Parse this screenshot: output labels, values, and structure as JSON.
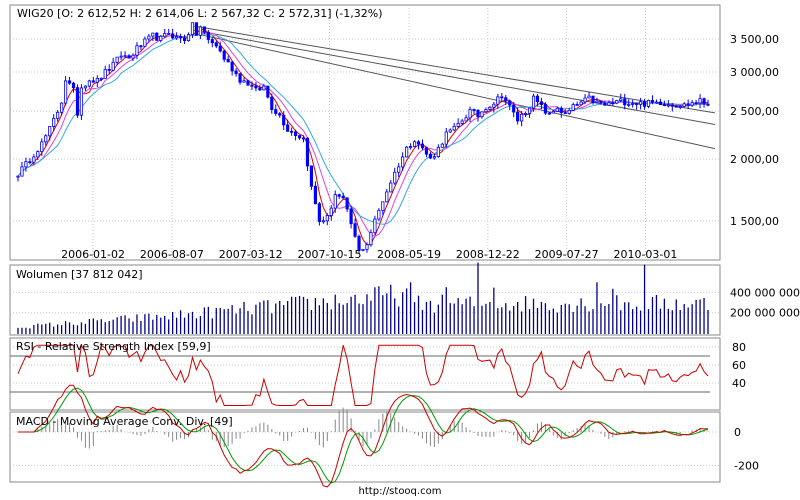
{
  "footer": "http://stooq.com",
  "colors": {
    "price": "#0000ff",
    "ma_red": "#dd0000",
    "ma_magenta": "#dd44dd",
    "ma_cyan": "#33aadd",
    "trend": "#555555",
    "volume": "#000088",
    "rsi": "#cc0000",
    "macd_red": "#cc0000",
    "macd_green": "#009900",
    "hist": "#888888",
    "grid": "#c8c8c8"
  },
  "chart_data": [
    {
      "type": "candlestick",
      "title": "WIG20 [O: 2 612,52  H: 2 614,06  L: 2 567,32  C: 2 572,31] (-1,32%)",
      "y_scale": "log",
      "ylim": [
        1250,
        4100
      ],
      "y_ticks": [
        1500,
        2000,
        2500,
        3000,
        3500
      ],
      "y_tick_labels": [
        "1 500,00",
        "2 000,00",
        "2 500,00",
        "3 000,00",
        "3 500,00"
      ],
      "x_ticks": [
        "2006-01-02",
        "2006-08-07",
        "2007-03-12",
        "2007-10-15",
        "2008-05-19",
        "2008-12-22",
        "2009-07-27",
        "2010-03-01"
      ],
      "x": [
        0,
        2,
        4,
        6,
        8,
        10,
        11,
        12,
        14,
        15,
        16,
        18,
        20,
        22,
        24,
        26,
        28,
        30,
        32,
        34,
        36,
        38,
        40,
        42,
        44,
        45,
        46,
        48,
        50,
        52,
        54,
        56,
        58,
        60,
        62,
        64,
        66,
        68,
        70,
        72,
        74,
        76,
        78,
        80,
        82,
        84,
        86,
        88,
        90,
        92,
        94,
        96,
        98,
        100,
        102,
        104,
        106,
        108,
        110,
        112,
        114,
        116,
        118,
        120,
        122,
        124,
        126,
        128,
        130,
        132,
        134,
        136,
        138,
        140,
        142,
        144,
        146,
        148,
        150,
        152,
        154,
        156,
        158,
        160,
        162,
        164,
        166,
        168,
        170,
        172,
        174
      ],
      "close": [
        1870,
        1950,
        2050,
        2150,
        2300,
        2500,
        2620,
        2900,
        2750,
        2480,
        2800,
        2900,
        2880,
        3000,
        3100,
        3250,
        3200,
        3350,
        3450,
        3550,
        3500,
        3600,
        3520,
        3500,
        3720,
        3580,
        3700,
        3480,
        3400,
        3200,
        3050,
        2900,
        2850,
        2750,
        2800,
        2550,
        2450,
        2300,
        2250,
        2200,
        1750,
        1500,
        1520,
        1700,
        1650,
        1480,
        1300,
        1350,
        1500,
        1650,
        1800,
        1950,
        2100,
        2200,
        2100,
        2000,
        2100,
        2250,
        2300,
        2400,
        2500,
        2450,
        2550,
        2600,
        2700,
        2550,
        2400,
        2500,
        2650,
        2550,
        2450,
        2550,
        2450,
        2550,
        2600,
        2650,
        2600,
        2570,
        2600,
        2620,
        2610,
        2600,
        2590,
        2600,
        2610,
        2590,
        2580,
        2570,
        2600,
        2620,
        2572
      ],
      "moving_averages": [
        "red",
        "magenta",
        "cyan"
      ],
      "trend_lines": 3
    },
    {
      "type": "bar",
      "title": "Wolumen [37 812 042]",
      "ylim": [
        0,
        650000000
      ],
      "y_ticks": [
        200000000,
        400000000
      ],
      "y_tick_labels": [
        "200 000 000",
        "400 000 000"
      ]
    },
    {
      "type": "line",
      "title": "RSI - Relative Strength Index [59,9]",
      "ylim": [
        10,
        90
      ],
      "y_ticks": [
        40,
        60,
        80
      ],
      "y_tick_labels": [
        "40",
        "60",
        "80"
      ],
      "reference_lines": [
        30,
        70
      ]
    },
    {
      "type": "line",
      "title": "MACD - Moving Average Conv. Div. [49]",
      "ylim": [
        -300,
        120
      ],
      "y_ticks": [
        -200,
        0
      ],
      "y_tick_labels": [
        "-200",
        "0"
      ]
    }
  ]
}
